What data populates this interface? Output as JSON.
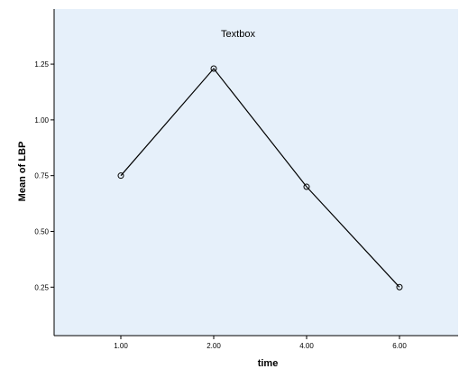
{
  "chart_data": {
    "type": "line",
    "title": "",
    "annotation": "Textbox",
    "xlabel": "time",
    "ylabel": "Mean of LBP",
    "categories": [
      "1.00",
      "2.00",
      "4.00",
      "6.00"
    ],
    "series": [
      {
        "values": [
          0.75,
          1.23,
          0.7,
          0.25
        ]
      }
    ],
    "yticks": [
      "0.25",
      "0.50",
      "0.75",
      "1.00",
      "1.25"
    ],
    "ylim": [
      0.13,
      1.46
    ],
    "grid": false,
    "marker": "circle",
    "colors": {
      "plot_background": "#e6f0fa",
      "line": "#000000",
      "frame": "#000000"
    }
  }
}
